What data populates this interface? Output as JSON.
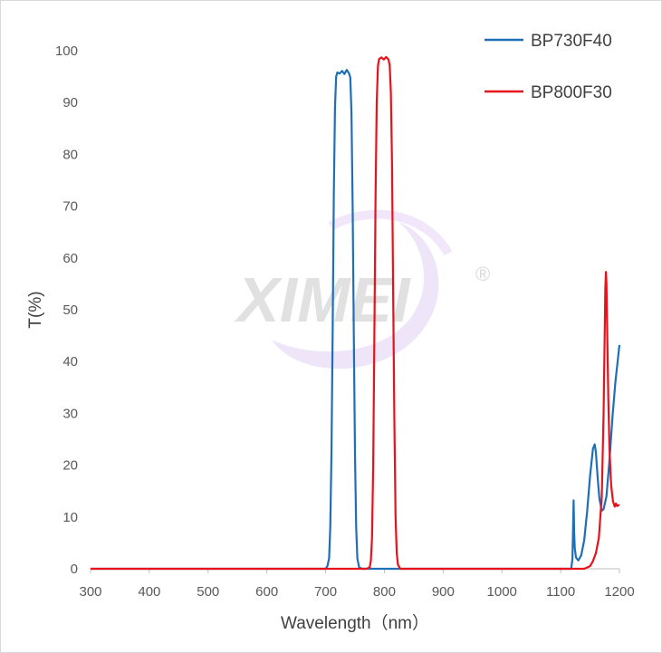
{
  "colors": {
    "series_1": "#1f6fb6",
    "series_2": "#e8121b",
    "axis": "#bfbfbf"
  },
  "watermark": {
    "text": "XIMEI",
    "registered_mark": "®"
  },
  "chart_data": {
    "type": "line",
    "xlabel": "Wavelength（nm）",
    "ylabel": "T(%)",
    "xlim": [
      300,
      1200
    ],
    "ylim": [
      0,
      100
    ],
    "xticks": [
      300,
      400,
      500,
      600,
      700,
      800,
      900,
      1000,
      1100,
      1200
    ],
    "yticks": [
      0,
      10,
      20,
      30,
      40,
      50,
      60,
      70,
      80,
      90,
      100
    ],
    "grid": false,
    "legend_position": "top-right",
    "series": [
      {
        "name": "BP730F40",
        "color": "#1f6fb6",
        "points": [
          [
            300,
            0
          ],
          [
            700,
            0
          ],
          [
            703,
            0.5
          ],
          [
            706,
            2
          ],
          [
            708,
            8
          ],
          [
            710,
            22
          ],
          [
            712,
            45
          ],
          [
            714,
            72
          ],
          [
            716,
            89
          ],
          [
            718,
            95
          ],
          [
            720,
            95.8
          ],
          [
            724,
            95.6
          ],
          [
            728,
            96.1
          ],
          [
            732,
            95.5
          ],
          [
            736,
            96.3
          ],
          [
            740,
            95.6
          ],
          [
            742,
            94.8
          ],
          [
            744,
            88
          ],
          [
            746,
            70
          ],
          [
            748,
            45
          ],
          [
            750,
            22
          ],
          [
            752,
            8
          ],
          [
            754,
            2
          ],
          [
            757,
            0.3
          ],
          [
            762,
            0
          ],
          [
            1118,
            0
          ],
          [
            1120,
            2
          ],
          [
            1121,
            7
          ],
          [
            1122,
            13.2
          ],
          [
            1123,
            7
          ],
          [
            1124,
            4
          ],
          [
            1126,
            2.2
          ],
          [
            1130,
            1.6
          ],
          [
            1135,
            2.6
          ],
          [
            1140,
            5.5
          ],
          [
            1145,
            11
          ],
          [
            1150,
            18
          ],
          [
            1155,
            23.2
          ],
          [
            1158,
            24
          ],
          [
            1160,
            22.5
          ],
          [
            1163,
            17.5
          ],
          [
            1166,
            13.5
          ],
          [
            1170,
            11.2
          ],
          [
            1173,
            11.5
          ],
          [
            1178,
            14
          ],
          [
            1183,
            21
          ],
          [
            1188,
            29
          ],
          [
            1193,
            36
          ],
          [
            1200,
            43.2
          ]
        ]
      },
      {
        "name": "BP800F30",
        "color": "#e8121b",
        "points": [
          [
            300,
            0
          ],
          [
            770,
            0
          ],
          [
            775,
            0.3
          ],
          [
            777,
            1.5
          ],
          [
            779,
            6
          ],
          [
            781,
            20
          ],
          [
            783,
            45
          ],
          [
            785,
            72
          ],
          [
            787,
            90
          ],
          [
            789,
            97
          ],
          [
            791,
            98.4
          ],
          [
            795,
            98.7
          ],
          [
            799,
            98.3
          ],
          [
            803,
            98.8
          ],
          [
            807,
            98.3
          ],
          [
            809,
            97.2
          ],
          [
            811,
            92
          ],
          [
            813,
            78
          ],
          [
            815,
            52
          ],
          [
            817,
            28
          ],
          [
            819,
            10
          ],
          [
            821,
            3
          ],
          [
            823,
            0.8
          ],
          [
            827,
            0
          ],
          [
            1140,
            0
          ],
          [
            1150,
            0.5
          ],
          [
            1155,
            1.5
          ],
          [
            1160,
            3
          ],
          [
            1165,
            6
          ],
          [
            1170,
            14
          ],
          [
            1173,
            30
          ],
          [
            1175,
            46
          ],
          [
            1176,
            54
          ],
          [
            1177,
            57.3
          ],
          [
            1178,
            55
          ],
          [
            1179,
            47
          ],
          [
            1181,
            33
          ],
          [
            1183,
            23
          ],
          [
            1186,
            16
          ],
          [
            1189,
            13
          ],
          [
            1192,
            12
          ],
          [
            1194,
            12.6
          ],
          [
            1196,
            12.1
          ],
          [
            1198,
            12.3
          ],
          [
            1200,
            12.2
          ]
        ]
      }
    ]
  }
}
